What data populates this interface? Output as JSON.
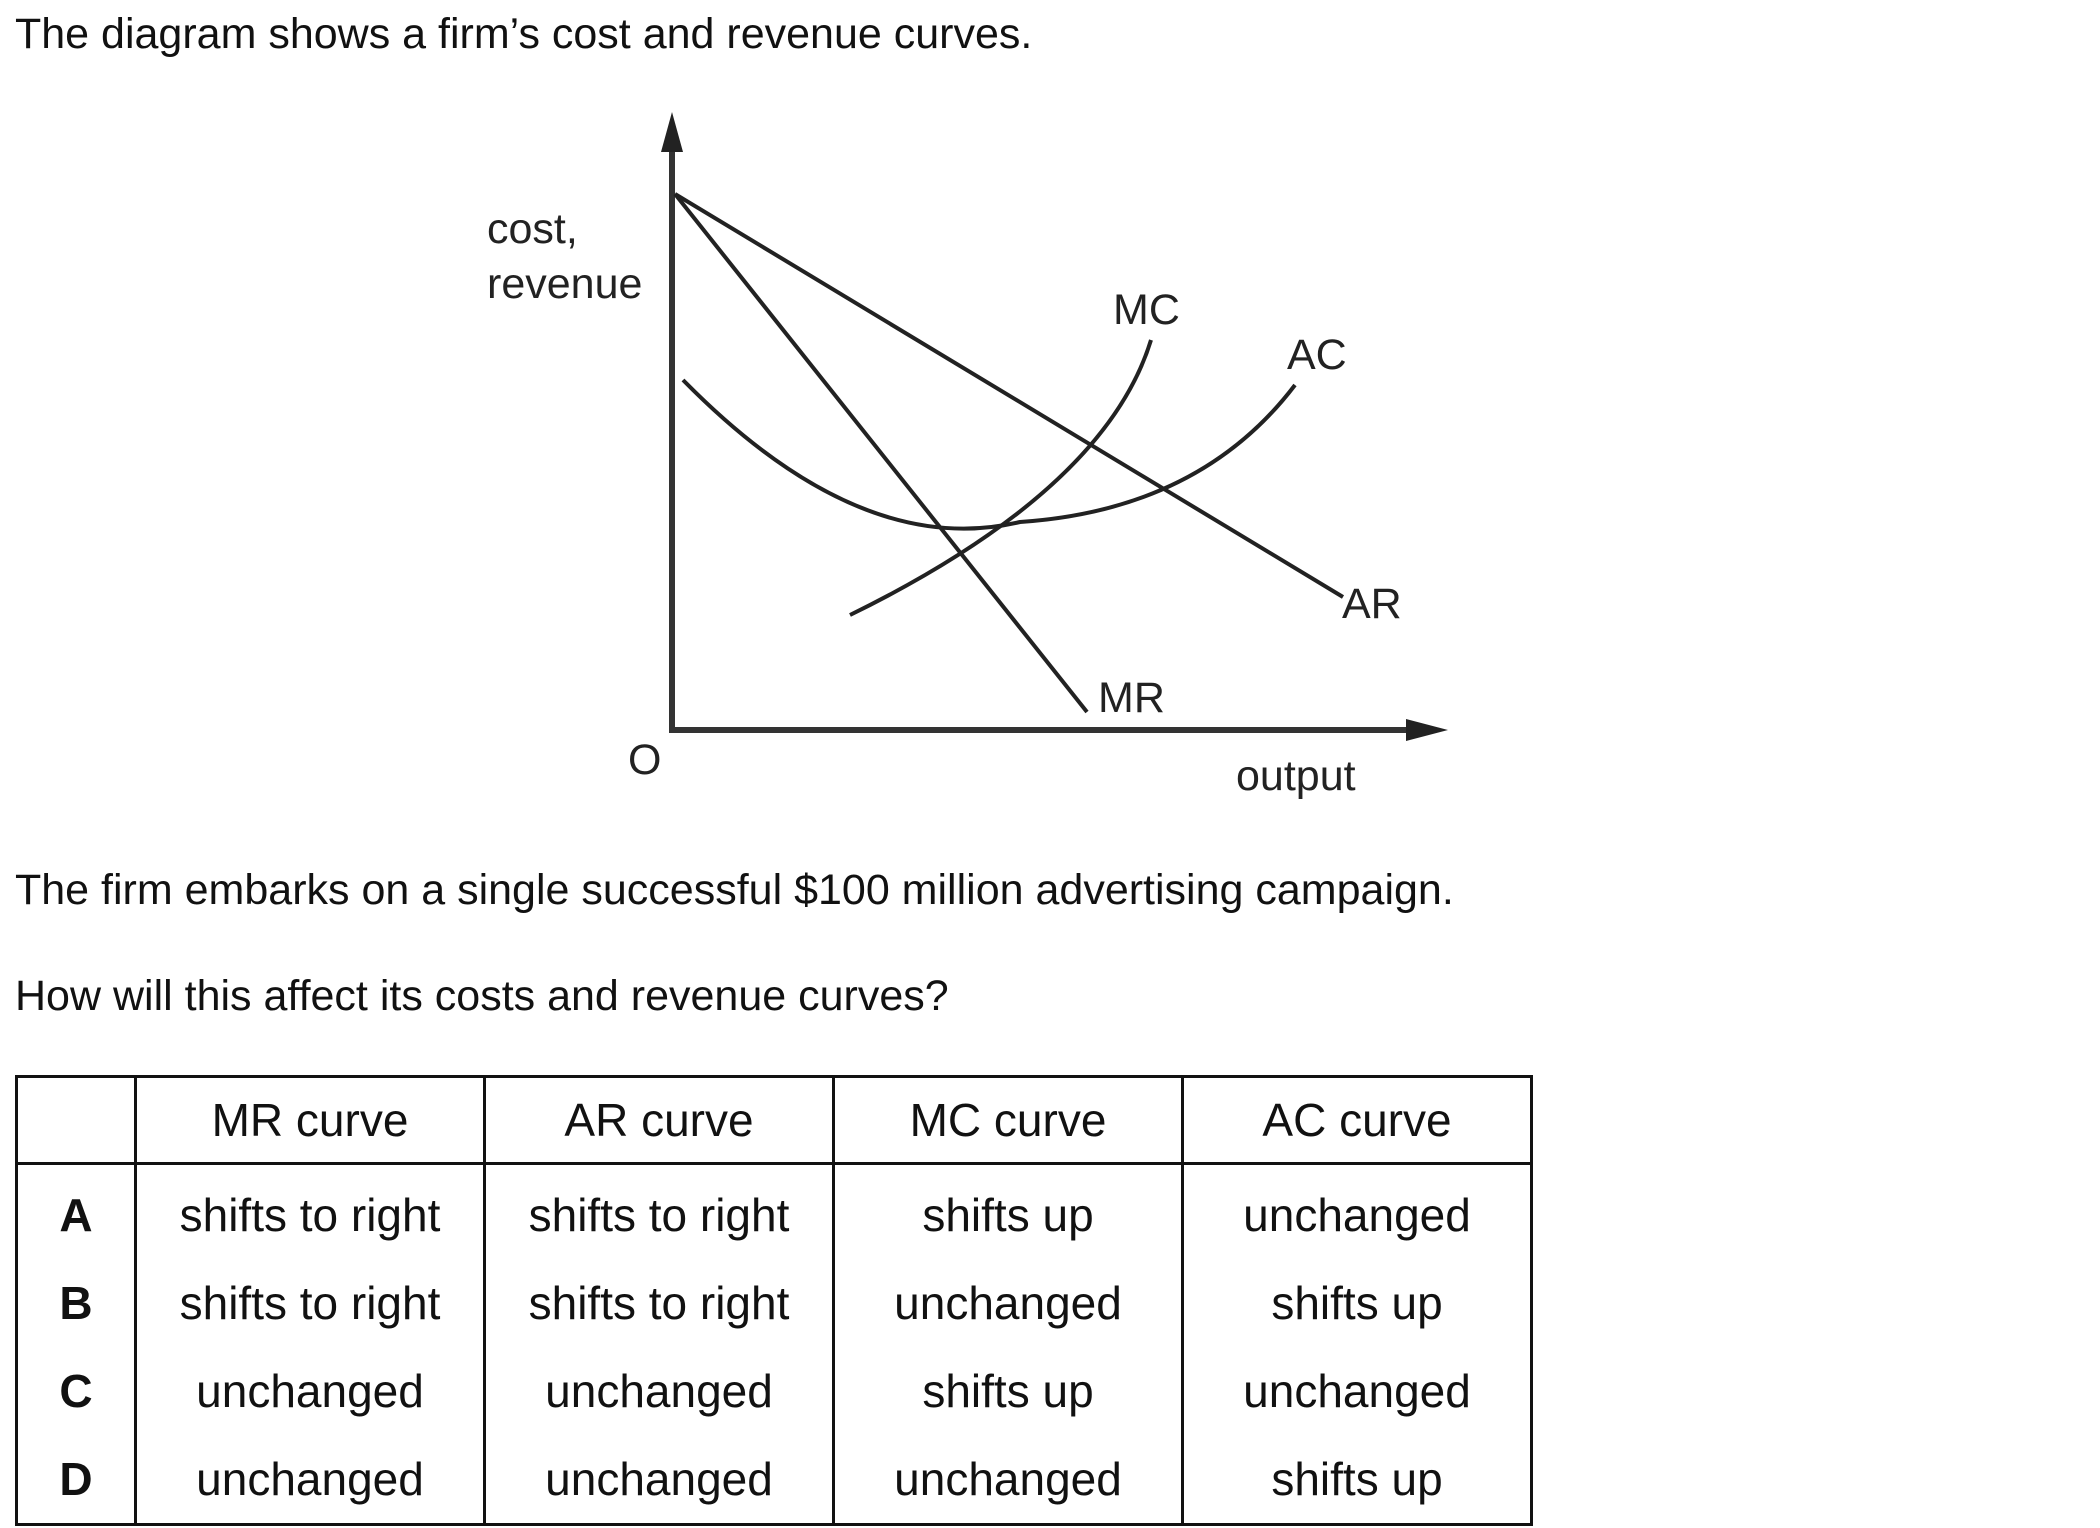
{
  "intro": "The diagram shows a firm’s cost and revenue curves.",
  "diagram": {
    "y_axis_label_line1": "cost,",
    "y_axis_label_line2": "revenue",
    "x_axis_label": "output",
    "origin_label": "O",
    "curves": {
      "mc": "MC",
      "ac": "AC",
      "ar": "AR",
      "mr": "MR"
    }
  },
  "scenario": "The firm embarks on a single successful $100 million advertising campaign.",
  "question": "How will this affect its costs and revenue curves?",
  "table": {
    "headers": [
      "",
      "MR curve",
      "AR curve",
      "MC curve",
      "AC curve"
    ],
    "rows": [
      {
        "key": "A",
        "cells": [
          "shifts to right",
          "shifts to right",
          "shifts up",
          "unchanged"
        ]
      },
      {
        "key": "B",
        "cells": [
          "shifts to right",
          "shifts to right",
          "unchanged",
          "shifts up"
        ]
      },
      {
        "key": "C",
        "cells": [
          "unchanged",
          "unchanged",
          "shifts up",
          "unchanged"
        ]
      },
      {
        "key": "D",
        "cells": [
          "unchanged",
          "unchanged",
          "unchanged",
          "shifts up"
        ]
      }
    ]
  }
}
